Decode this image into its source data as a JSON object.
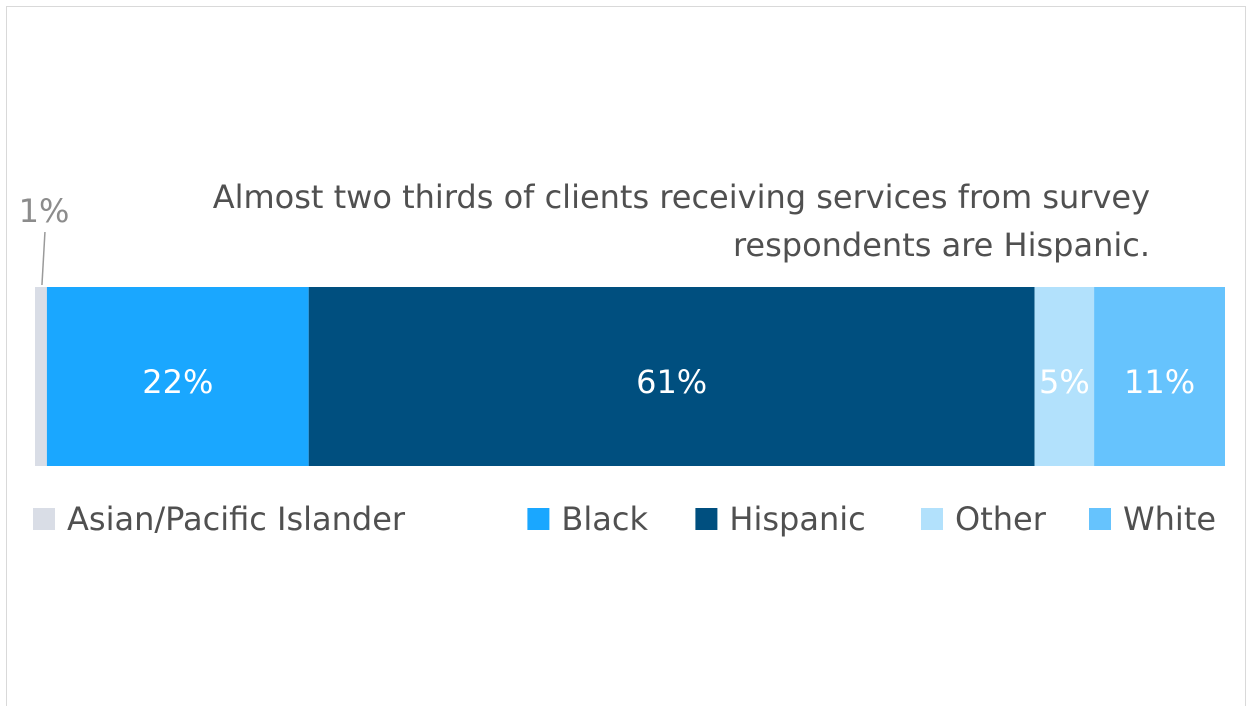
{
  "chart_data": {
    "type": "bar",
    "orientation": "horizontal",
    "stacked": true,
    "categories": [
      "Asian/Pacific Islander",
      "Black",
      "Hispanic",
      "Other",
      "White"
    ],
    "values": [
      1,
      22,
      61,
      5,
      11
    ],
    "labels": [
      "1%",
      "22%",
      "61%",
      "5%",
      "11%"
    ],
    "colors": [
      "#d9dde6",
      "#1aa7ff",
      "#004f7f",
      "#b2e1fc",
      "#66c3fd"
    ],
    "label_colors": [
      "#8c8c8c",
      "#ffffff",
      "#ffffff",
      "#ffffff",
      "#ffffff"
    ],
    "annotation": [
      "Almost two thirds of clients receiving services from survey",
      "respondents are Hispanic."
    ],
    "title": "",
    "xlabel": "",
    "ylabel": "",
    "xlim": [
      0,
      100
    ],
    "grid": false,
    "legend": "bottom"
  }
}
